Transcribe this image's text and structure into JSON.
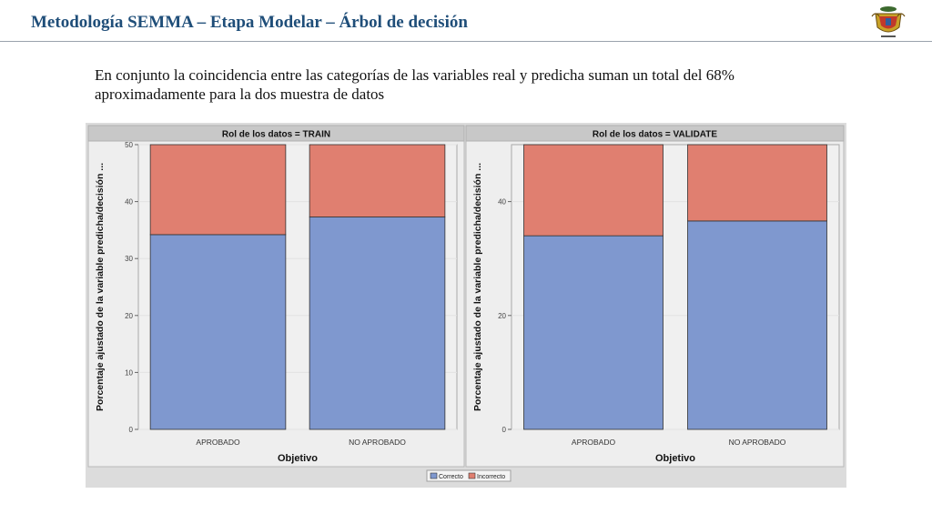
{
  "slide": {
    "title": "Metodología SEMMA – Etapa Modelar – Árbol de decisión",
    "intro_line1": "En conjunto la coincidencia entre las categorías de las variables real y predicha suman un total del 68%",
    "intro_line2": "aproximadamente para la dos muestra de datos"
  },
  "colors": {
    "correcto": "#7f98cf",
    "incorrecto": "#e07f70",
    "panel_bg": "#eeeeee",
    "frame_bg": "#dcdcdc"
  },
  "chart_data": [
    {
      "type": "bar",
      "stacked": true,
      "title": "Rol de los datos = TRAIN",
      "xlabel": "Objetivo",
      "ylabel": "Porcentaje ajustado de la variable predicha/decisión ...",
      "categories": [
        "APROBADO",
        "NO APROBADO"
      ],
      "ylim": [
        0,
        50
      ],
      "yticks": [
        0,
        10,
        20,
        30,
        40,
        50
      ],
      "series": [
        {
          "name": "Correcto",
          "values": [
            34.2,
            37.3
          ]
        },
        {
          "name": "Incorrecto",
          "values": [
            15.8,
            12.7
          ]
        }
      ],
      "grid": true
    },
    {
      "type": "bar",
      "stacked": true,
      "title": "Rol de los datos = VALIDATE",
      "xlabel": "Objetivo",
      "ylabel": "Porcentaje ajustado de la variable predicha/decisión ...",
      "categories": [
        "APROBADO",
        "NO APROBADO"
      ],
      "ylim": [
        0,
        50
      ],
      "yticks": [
        0,
        20,
        40
      ],
      "series": [
        {
          "name": "Correcto",
          "values": [
            34.0,
            36.6
          ]
        },
        {
          "name": "Incorrecto",
          "values": [
            16.0,
            13.4
          ]
        }
      ],
      "grid": true
    }
  ],
  "legend": {
    "position": "bottom-center",
    "items": [
      "Correcto",
      "Incorrecto"
    ]
  }
}
